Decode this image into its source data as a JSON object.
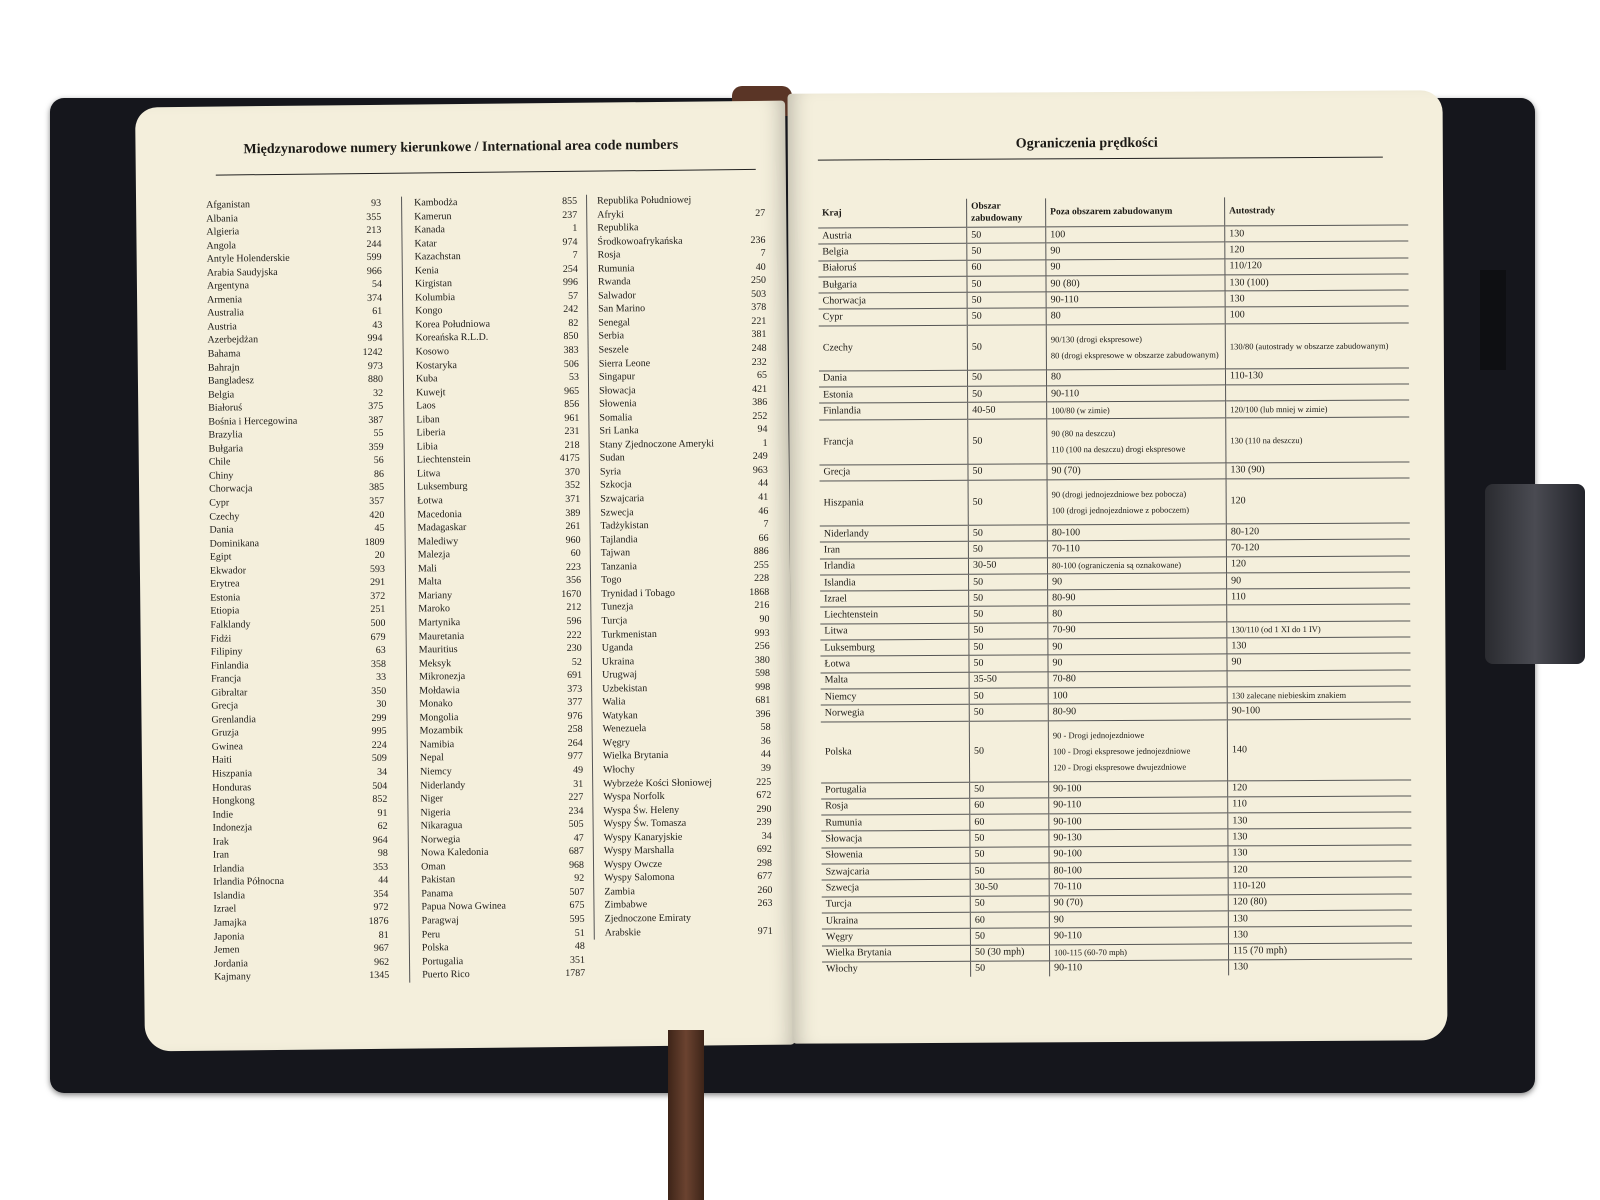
{
  "left_page": {
    "title": "Międzynarodowe numery kierunkowe / International area code numbers",
    "columns": [
      [
        [
          "Afganistan",
          "93"
        ],
        [
          "Albania",
          "355"
        ],
        [
          "Algieria",
          "213"
        ],
        [
          "Angola",
          "244"
        ],
        [
          "Antyle Holenderskie",
          "599"
        ],
        [
          "Arabia Saudyjska",
          "966"
        ],
        [
          "Argentyna",
          "54"
        ],
        [
          "Armenia",
          "374"
        ],
        [
          "Australia",
          "61"
        ],
        [
          "Austria",
          "43"
        ],
        [
          "Azerbejdżan",
          "994"
        ],
        [
          "Bahama",
          "1242"
        ],
        [
          "Bahrajn",
          "973"
        ],
        [
          "Bangladesz",
          "880"
        ],
        [
          "Belgia",
          "32"
        ],
        [
          "Białoruś",
          "375"
        ],
        [
          "Bośnia i Hercegowina",
          "387"
        ],
        [
          "Brazylia",
          "55"
        ],
        [
          "Bułgaria",
          "359"
        ],
        [
          "Chile",
          "56"
        ],
        [
          "Chiny",
          "86"
        ],
        [
          "Chorwacja",
          "385"
        ],
        [
          "Cypr",
          "357"
        ],
        [
          "Czechy",
          "420"
        ],
        [
          "Dania",
          "45"
        ],
        [
          "Dominikana",
          "1809"
        ],
        [
          "Egipt",
          "20"
        ],
        [
          "Ekwador",
          "593"
        ],
        [
          "Erytrea",
          "291"
        ],
        [
          "Estonia",
          "372"
        ],
        [
          "Etiopia",
          "251"
        ],
        [
          "Falklandy",
          "500"
        ],
        [
          "Fidżi",
          "679"
        ],
        [
          "Filipiny",
          "63"
        ],
        [
          "Finlandia",
          "358"
        ],
        [
          "Francja",
          "33"
        ],
        [
          "Gibraltar",
          "350"
        ],
        [
          "Grecja",
          "30"
        ],
        [
          "Grenlandia",
          "299"
        ],
        [
          "Gruzja",
          "995"
        ],
        [
          "Gwinea",
          "224"
        ],
        [
          "Haiti",
          "509"
        ],
        [
          "Hiszpania",
          "34"
        ],
        [
          "Honduras",
          "504"
        ],
        [
          "Hongkong",
          "852"
        ],
        [
          "Indie",
          "91"
        ],
        [
          "Indonezja",
          "62"
        ],
        [
          "Irak",
          "964"
        ],
        [
          "Iran",
          "98"
        ],
        [
          "Irlandia",
          "353"
        ],
        [
          "Irlandia Północna",
          "44"
        ],
        [
          "Islandia",
          "354"
        ],
        [
          "Izrael",
          "972"
        ],
        [
          "Jamajka",
          "1876"
        ],
        [
          "Japonia",
          "81"
        ],
        [
          "Jemen",
          "967"
        ],
        [
          "Jordania",
          "962"
        ],
        [
          "Kajmany",
          "1345"
        ]
      ],
      [
        [
          "Kambodża",
          "855"
        ],
        [
          "Kamerun",
          "237"
        ],
        [
          "Kanada",
          "1"
        ],
        [
          "Katar",
          "974"
        ],
        [
          "Kazachstan",
          "7"
        ],
        [
          "Kenia",
          "254"
        ],
        [
          "Kirgistan",
          "996"
        ],
        [
          "Kolumbia",
          "57"
        ],
        [
          "Kongo",
          "242"
        ],
        [
          "Korea Południowa",
          "82"
        ],
        [
          "Koreańska R.L.D.",
          "850"
        ],
        [
          "Kosowo",
          "383"
        ],
        [
          "Kostaryka",
          "506"
        ],
        [
          "Kuba",
          "53"
        ],
        [
          "Kuwejt",
          "965"
        ],
        [
          "Laos",
          "856"
        ],
        [
          "Liban",
          "961"
        ],
        [
          "Liberia",
          "231"
        ],
        [
          "Libia",
          "218"
        ],
        [
          "Liechtenstein",
          "4175"
        ],
        [
          "Litwa",
          "370"
        ],
        [
          "Luksemburg",
          "352"
        ],
        [
          "Łotwa",
          "371"
        ],
        [
          "Macedonia",
          "389"
        ],
        [
          "Madagaskar",
          "261"
        ],
        [
          "Malediwy",
          "960"
        ],
        [
          "Malezja",
          "60"
        ],
        [
          "Mali",
          "223"
        ],
        [
          "Malta",
          "356"
        ],
        [
          "Mariany",
          "1670"
        ],
        [
          "Maroko",
          "212"
        ],
        [
          "Martynika",
          "596"
        ],
        [
          "Mauretania",
          "222"
        ],
        [
          "Mauritius",
          "230"
        ],
        [
          "Meksyk",
          "52"
        ],
        [
          "Mikronezja",
          "691"
        ],
        [
          "Mołdawia",
          "373"
        ],
        [
          "Monako",
          "377"
        ],
        [
          "Mongolia",
          "976"
        ],
        [
          "Mozambik",
          "258"
        ],
        [
          "Namibia",
          "264"
        ],
        [
          "Nepal",
          "977"
        ],
        [
          "Niemcy",
          "49"
        ],
        [
          "Niderlandy",
          "31"
        ],
        [
          "Niger",
          "227"
        ],
        [
          "Nigeria",
          "234"
        ],
        [
          "Nikaragua",
          "505"
        ],
        [
          "Norwegia",
          "47"
        ],
        [
          "Nowa Kaledonia",
          "687"
        ],
        [
          "Oman",
          "968"
        ],
        [
          "Pakistan",
          "92"
        ],
        [
          "Panama",
          "507"
        ],
        [
          "Papua Nowa Gwinea",
          "675"
        ],
        [
          "Paragwaj",
          "595"
        ],
        [
          "Peru",
          "51"
        ],
        [
          "Polska",
          "48"
        ],
        [
          "Portugalia",
          "351"
        ],
        [
          "Puerto Rico",
          "1787"
        ]
      ],
      [
        [
          "Republika Południowej",
          ""
        ],
        [
          "Afryki",
          "27"
        ],
        [
          "Republika",
          ""
        ],
        [
          "Środkowoafrykańska",
          "236"
        ],
        [
          "Rosja",
          "7"
        ],
        [
          "Rumunia",
          "40"
        ],
        [
          "Rwanda",
          "250"
        ],
        [
          "Salwador",
          "503"
        ],
        [
          "San Marino",
          "378"
        ],
        [
          "Senegal",
          "221"
        ],
        [
          "Serbia",
          "381"
        ],
        [
          "Seszele",
          "248"
        ],
        [
          "Sierra Leone",
          "232"
        ],
        [
          "Singapur",
          "65"
        ],
        [
          "Słowacja",
          "421"
        ],
        [
          "Słowenia",
          "386"
        ],
        [
          "Somalia",
          "252"
        ],
        [
          "Sri Lanka",
          "94"
        ],
        [
          "Stany Zjednoczone Ameryki",
          "1"
        ],
        [
          "Sudan",
          "249"
        ],
        [
          "Syria",
          "963"
        ],
        [
          "Szkocja",
          "44"
        ],
        [
          "Szwajcaria",
          "41"
        ],
        [
          "Szwecja",
          "46"
        ],
        [
          "Tadżykistan",
          "7"
        ],
        [
          "Tajlandia",
          "66"
        ],
        [
          "Tajwan",
          "886"
        ],
        [
          "Tanzania",
          "255"
        ],
        [
          "Togo",
          "228"
        ],
        [
          "Trynidad i Tobago",
          "1868"
        ],
        [
          "Tunezja",
          "216"
        ],
        [
          "Turcja",
          "90"
        ],
        [
          "Turkmenistan",
          "993"
        ],
        [
          "Uganda",
          "256"
        ],
        [
          "Ukraina",
          "380"
        ],
        [
          "Urugwaj",
          "598"
        ],
        [
          "Uzbekistan",
          "998"
        ],
        [
          "Walia",
          "681"
        ],
        [
          "Watykan",
          "396"
        ],
        [
          "Wenezuela",
          "58"
        ],
        [
          "Węgry",
          "36"
        ],
        [
          "Wielka Brytania",
          "44"
        ],
        [
          "Włochy",
          "39"
        ],
        [
          "Wybrzeże Kości Słoniowej",
          "225"
        ],
        [
          "Wyspa Norfolk",
          "672"
        ],
        [
          "Wyspa Św. Heleny",
          "290"
        ],
        [
          "Wyspy Św. Tomasza",
          "239"
        ],
        [
          "Wyspy Kanaryjskie",
          "34"
        ],
        [
          "Wyspy Marshalla",
          "692"
        ],
        [
          "Wyspy Owcze",
          "298"
        ],
        [
          "Wyspy Salomona",
          "677"
        ],
        [
          "Zambia",
          "260"
        ],
        [
          "Zimbabwe",
          "263"
        ],
        [
          "Zjednoczone Emiraty",
          ""
        ],
        [
          "Arabskie",
          "971"
        ]
      ]
    ]
  },
  "right_page": {
    "title": "Ograniczenia prędkości",
    "headers": [
      "Kraj",
      "Obszar zabudowany",
      "Poza obszarem zabudowanym",
      "Autostrady"
    ],
    "rows": [
      [
        "Austria",
        "50",
        [
          "100"
        ],
        [
          "130"
        ]
      ],
      [
        "Belgia",
        "50",
        [
          "90"
        ],
        [
          "120"
        ]
      ],
      [
        "Białoruś",
        "60",
        [
          "90"
        ],
        [
          "110/120"
        ]
      ],
      [
        "Bułgaria",
        "50",
        [
          "90 (80)"
        ],
        [
          "130 (100)"
        ]
      ],
      [
        "Chorwacja",
        "50",
        [
          "90-110"
        ],
        [
          "130"
        ]
      ],
      [
        "Cypr",
        "50",
        [
          "80"
        ],
        [
          "100"
        ]
      ],
      [
        "Czechy",
        "50",
        [
          "90/130 (drogi ekspresowe)",
          "80 (drogi ekspresowe w obszarze zabudowanym)"
        ],
        [
          "130/80 (autostrady w obszarze zabudowanym)"
        ]
      ],
      [
        "Dania",
        "50",
        [
          "80"
        ],
        [
          "110-130"
        ]
      ],
      [
        "Estonia",
        "50",
        [
          "90-110"
        ],
        [
          ""
        ]
      ],
      [
        "Finlandia",
        "40-50",
        [
          "100/80 (w zimie)"
        ],
        [
          "120/100 (lub mniej w zimie)"
        ]
      ],
      [
        "Francja",
        "50",
        [
          "90 (80 na deszczu)",
          "110 (100 na deszczu) drogi ekspresowe"
        ],
        [
          "130 (110 na deszczu)"
        ]
      ],
      [
        "Grecja",
        "50",
        [
          "90 (70)"
        ],
        [
          "130 (90)"
        ]
      ],
      [
        "Hiszpania",
        "50",
        [
          "90 (drogi jednojezdniowe bez pobocza)",
          "100 (drogi jednojezdniowe z poboczem)"
        ],
        [
          "120"
        ]
      ],
      [
        "Niderlandy",
        "50",
        [
          "80-100"
        ],
        [
          "80-120"
        ]
      ],
      [
        "Iran",
        "50",
        [
          "70-110"
        ],
        [
          "70-120"
        ]
      ],
      [
        "Irlandia",
        "30-50",
        [
          "80-100 (ograniczenia są oznakowane)"
        ],
        [
          "120"
        ]
      ],
      [
        "Islandia",
        "50",
        [
          "90"
        ],
        [
          "90"
        ]
      ],
      [
        "Izrael",
        "50",
        [
          "80-90"
        ],
        [
          "110"
        ]
      ],
      [
        "Liechtenstein",
        "50",
        [
          "80"
        ],
        [
          ""
        ]
      ],
      [
        "Litwa",
        "50",
        [
          "70-90"
        ],
        [
          "130/110 (od 1 XI do 1 IV)"
        ]
      ],
      [
        "Luksemburg",
        "50",
        [
          "90"
        ],
        [
          "130"
        ]
      ],
      [
        "Łotwa",
        "50",
        [
          "90"
        ],
        [
          "90"
        ]
      ],
      [
        "Malta",
        "35-50",
        [
          "70-80"
        ],
        [
          ""
        ]
      ],
      [
        "Niemcy",
        "50",
        [
          "100"
        ],
        [
          "130 zalecane niebieskim znakiem"
        ]
      ],
      [
        "Norwegia",
        "50",
        [
          "80-90"
        ],
        [
          "90-100"
        ]
      ],
      [
        "Polska",
        "50",
        [
          "90 - Drogi jednojezdniowe",
          "100 - Drogi ekspresowe jednojezdniowe",
          "120 - Drogi ekspresowe dwujezdniowe"
        ],
        [
          "140"
        ]
      ],
      [
        "Portugalia",
        "50",
        [
          "90-100"
        ],
        [
          "120"
        ]
      ],
      [
        "Rosja",
        "60",
        [
          "90-110"
        ],
        [
          "110"
        ]
      ],
      [
        "Rumunia",
        "60",
        [
          "90-100"
        ],
        [
          "130"
        ]
      ],
      [
        "Słowacja",
        "50",
        [
          "90-130"
        ],
        [
          "130"
        ]
      ],
      [
        "Słowenia",
        "50",
        [
          "90-100"
        ],
        [
          "130"
        ]
      ],
      [
        "Szwajcaria",
        "50",
        [
          "80-100"
        ],
        [
          "120"
        ]
      ],
      [
        "Szwecja",
        "30-50",
        [
          "70-110"
        ],
        [
          "110-120"
        ]
      ],
      [
        "Turcja",
        "50",
        [
          "90 (70)"
        ],
        [
          "120 (80)"
        ]
      ],
      [
        "Ukraina",
        "60",
        [
          "90"
        ],
        [
          "130"
        ]
      ],
      [
        "Węgry",
        "50",
        [
          "90-110"
        ],
        [
          "130"
        ]
      ],
      [
        "Wielka Brytania",
        "50 (30 mph)",
        [
          "100-115 (60-70 mph)"
        ],
        [
          "115 (70 mph)"
        ]
      ],
      [
        "Włochy",
        "50",
        [
          "90-110"
        ],
        [
          "130"
        ]
      ]
    ]
  },
  "colors": {
    "page": "#f4efdc",
    "cover": "#15161c",
    "ink": "#1c1a16",
    "ribbon": "#6b4330"
  }
}
